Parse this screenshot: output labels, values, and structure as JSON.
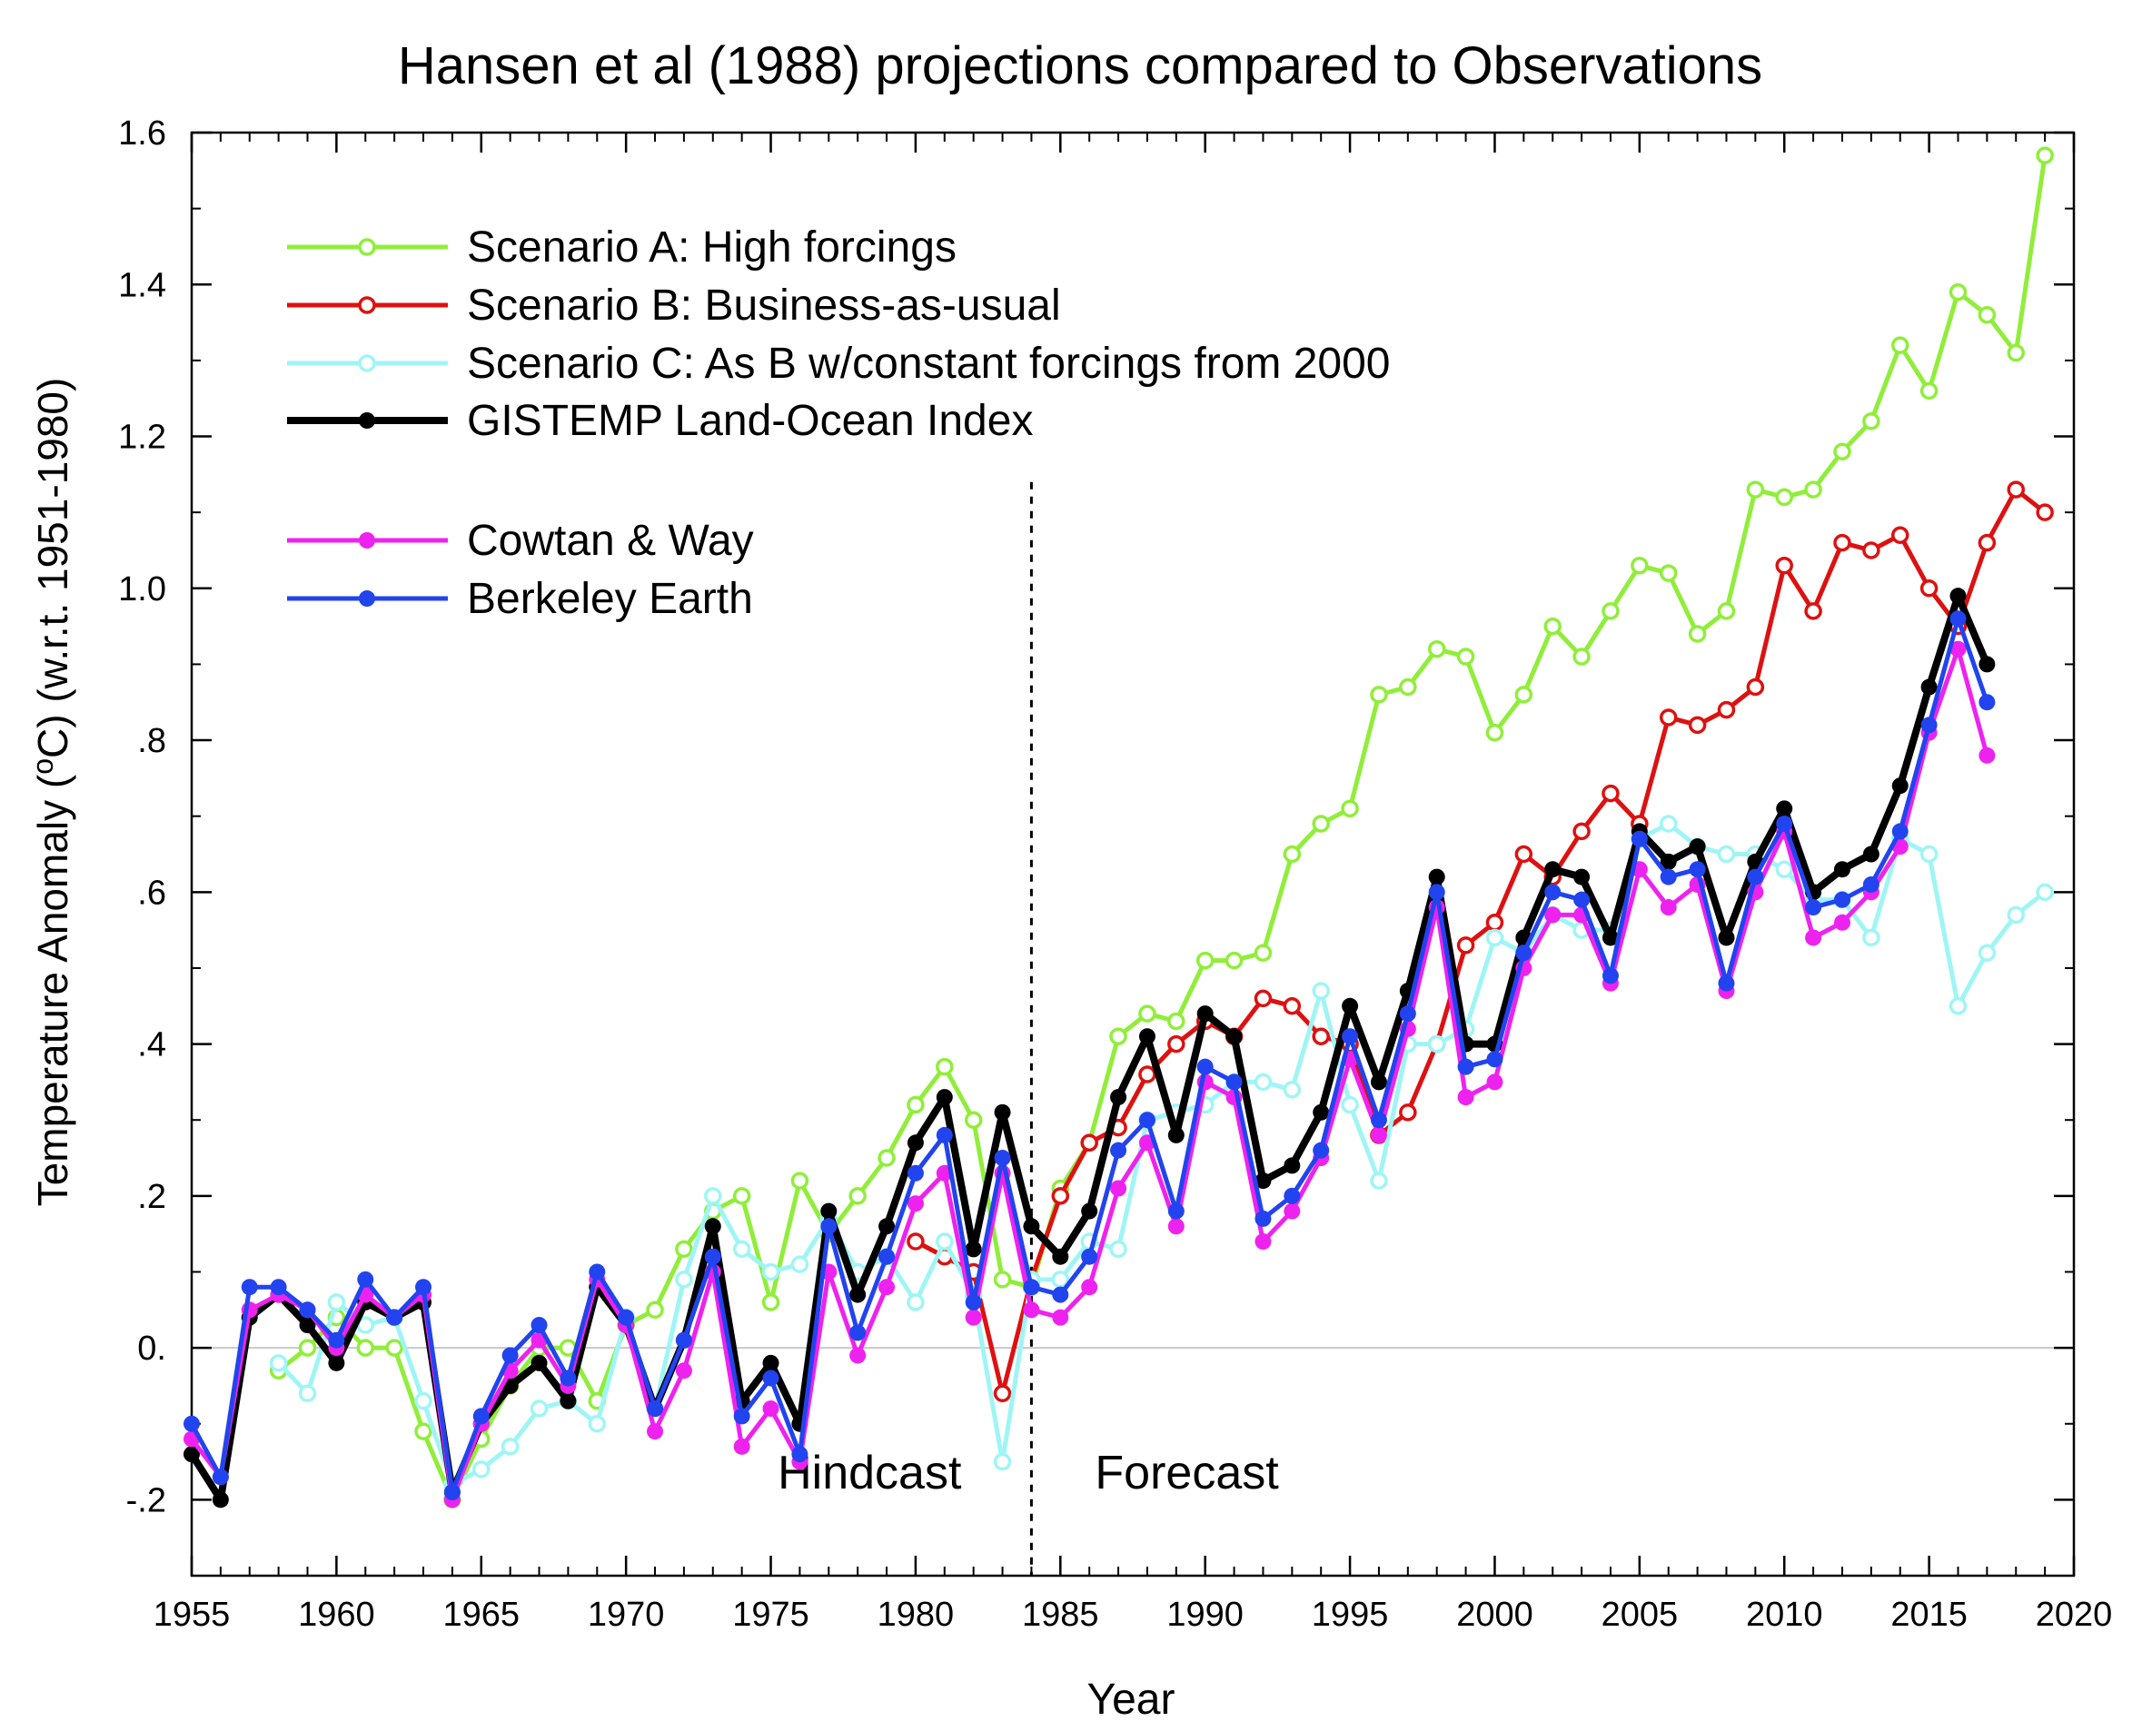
{
  "chart_data": {
    "type": "line",
    "title": "Hansen et al (1988) projections compared to Observations",
    "xlabel": "Year",
    "ylabel": "Temperature Anomaly (oC) (w.r.t. 1951-1980)",
    "ylabel_parts": {
      "before": "Temperature Anomaly (",
      "sup": "o",
      "after": "C) (w.r.t. 1951-1980)"
    },
    "xlim": [
      1955,
      2020
    ],
    "ylim": [
      -0.3,
      1.6
    ],
    "x_ticks": [
      1955,
      1960,
      1965,
      1970,
      1975,
      1980,
      1985,
      1990,
      1995,
      2000,
      2005,
      2010,
      2015,
      2020
    ],
    "x_tick_labels": [
      "1955",
      "1960",
      "1965",
      "1970",
      "1975",
      "1980",
      "1985",
      "1990",
      "1995",
      "2000",
      "2005",
      "2010",
      "2015",
      "2020"
    ],
    "y_ticks": [
      -0.2,
      0.0,
      0.2,
      0.4,
      0.6,
      0.8,
      1.0,
      1.2,
      1.4,
      1.6
    ],
    "y_tick_labels": [
      "-.2",
      "0.",
      ".2",
      ".4",
      ".6",
      ".8",
      "1.0",
      "1.2",
      "1.4",
      "1.6"
    ],
    "zero_line": true,
    "grid": false,
    "legend_position": "top-left",
    "annotations": {
      "divider_year": 1984,
      "hindcast_label": "Hindcast",
      "forecast_label": "Forecast"
    },
    "series": [
      {
        "name": "Scenario A: High forcings",
        "color": "#90ee3a",
        "marker": "open-circle",
        "x": [
          1958,
          1959,
          1960,
          1961,
          1962,
          1963,
          1964,
          1965,
          1966,
          1967,
          1968,
          1969,
          1970,
          1971,
          1972,
          1973,
          1974,
          1975,
          1976,
          1977,
          1978,
          1979,
          1980,
          1981,
          1982,
          1983,
          1984,
          1985,
          1986,
          1987,
          1988,
          1989,
          1990,
          1991,
          1992,
          1993,
          1994,
          1995,
          1996,
          1997,
          1998,
          1999,
          2000,
          2001,
          2002,
          2003,
          2004,
          2005,
          2006,
          2007,
          2008,
          2009,
          2010,
          2011,
          2012,
          2013,
          2014,
          2015,
          2016,
          2017,
          2018,
          2019
        ],
        "y": [
          -0.03,
          0.0,
          0.04,
          0.0,
          0.0,
          -0.11,
          -0.2,
          -0.12,
          -0.05,
          0.0,
          0.0,
          -0.07,
          0.03,
          0.05,
          0.13,
          0.18,
          0.2,
          0.06,
          0.22,
          0.15,
          0.2,
          0.25,
          0.32,
          0.37,
          0.3,
          0.09,
          0.08,
          0.21,
          0.27,
          0.41,
          0.44,
          0.43,
          0.51,
          0.51,
          0.52,
          0.65,
          0.69,
          0.71,
          0.86,
          0.87,
          0.92,
          0.91,
          0.81,
          0.86,
          0.95,
          0.91,
          0.97,
          1.03,
          1.02,
          0.94,
          0.97,
          1.13,
          1.12,
          1.13,
          1.18,
          1.22,
          1.32,
          1.26,
          1.39,
          1.36,
          1.31,
          1.57
        ]
      },
      {
        "name": "Scenario B: Business-as-usual",
        "color": "#dd1111",
        "marker": "open-circle",
        "x": [
          1980,
          1981,
          1982,
          1983,
          1984,
          1985,
          1986,
          1987,
          1988,
          1989,
          1990,
          1991,
          1992,
          1993,
          1994,
          1995,
          1996,
          1997,
          1998,
          1999,
          2000,
          2001,
          2002,
          2003,
          2004,
          2005,
          2006,
          2007,
          2008,
          2009,
          2010,
          2011,
          2012,
          2013,
          2014,
          2015,
          2016,
          2017,
          2018,
          2019
        ],
        "y": [
          0.14,
          0.12,
          0.1,
          -0.06,
          0.09,
          0.2,
          0.27,
          0.29,
          0.36,
          0.4,
          0.43,
          0.41,
          0.46,
          0.45,
          0.41,
          0.4,
          0.28,
          0.31,
          0.4,
          0.53,
          0.56,
          0.65,
          0.62,
          0.68,
          0.73,
          0.69,
          0.83,
          0.82,
          0.84,
          0.87,
          1.03,
          0.97,
          1.06,
          1.05,
          1.07,
          1.0,
          0.95,
          1.06,
          1.13,
          1.1
        ]
      },
      {
        "name": "Scenario C: As B w/constant forcings from 2000",
        "color": "#9ff5f5",
        "marker": "open-circle",
        "x": [
          1958,
          1959,
          1960,
          1961,
          1962,
          1963,
          1964,
          1965,
          1966,
          1967,
          1968,
          1969,
          1970,
          1971,
          1972,
          1973,
          1974,
          1975,
          1976,
          1977,
          1978,
          1979,
          1980,
          1981,
          1982,
          1983,
          1984,
          1985,
          1986,
          1987,
          1988,
          1989,
          1990,
          1991,
          1992,
          1993,
          1994,
          1995,
          1996,
          1997,
          1998,
          1999,
          2000,
          2001,
          2002,
          2003,
          2004,
          2005,
          2006,
          2007,
          2008,
          2009,
          2010,
          2011,
          2012,
          2013,
          2014,
          2015,
          2016,
          2017,
          2018,
          2019
        ],
        "y": [
          -0.02,
          -0.06,
          0.06,
          0.03,
          0.04,
          -0.07,
          -0.18,
          -0.16,
          -0.13,
          -0.08,
          -0.07,
          -0.1,
          0.04,
          -0.08,
          0.09,
          0.2,
          0.13,
          0.1,
          0.11,
          0.17,
          0.1,
          0.12,
          0.06,
          0.14,
          0.07,
          -0.15,
          0.09,
          0.09,
          0.14,
          0.13,
          0.3,
          0.31,
          0.32,
          0.35,
          0.35,
          0.34,
          0.47,
          0.32,
          0.22,
          0.4,
          0.4,
          0.42,
          0.54,
          0.52,
          0.57,
          0.55,
          0.55,
          0.67,
          0.69,
          0.66,
          0.65,
          0.65,
          0.63,
          0.59,
          0.59,
          0.54,
          0.67,
          0.65,
          0.45,
          0.52,
          0.57,
          0.6
        ]
      },
      {
        "name": "GISTEMP Land-Ocean Index",
        "color": "#000000",
        "marker": "filled-circle",
        "x": [
          1955,
          1956,
          1957,
          1958,
          1959,
          1960,
          1961,
          1962,
          1963,
          1964,
          1965,
          1966,
          1967,
          1968,
          1969,
          1970,
          1971,
          1972,
          1973,
          1974,
          1975,
          1976,
          1977,
          1978,
          1979,
          1980,
          1981,
          1982,
          1983,
          1984,
          1985,
          1986,
          1987,
          1988,
          1989,
          1990,
          1991,
          1992,
          1993,
          1994,
          1995,
          1996,
          1997,
          1998,
          1999,
          2000,
          2001,
          2002,
          2003,
          2004,
          2005,
          2006,
          2007,
          2008,
          2009,
          2010,
          2011,
          2012,
          2013,
          2014,
          2015,
          2016,
          2017
        ],
        "y": [
          -0.14,
          -0.2,
          0.04,
          0.07,
          0.03,
          -0.02,
          0.06,
          0.04,
          0.06,
          -0.19,
          -0.1,
          -0.05,
          -0.02,
          -0.07,
          0.08,
          0.03,
          -0.08,
          0.01,
          0.16,
          -0.07,
          -0.02,
          -0.1,
          0.18,
          0.07,
          0.16,
          0.27,
          0.33,
          0.13,
          0.31,
          0.16,
          0.12,
          0.18,
          0.33,
          0.41,
          0.28,
          0.44,
          0.41,
          0.22,
          0.24,
          0.31,
          0.45,
          0.35,
          0.47,
          0.62,
          0.4,
          0.4,
          0.54,
          0.63,
          0.62,
          0.54,
          0.68,
          0.64,
          0.66,
          0.54,
          0.64,
          0.71,
          0.6,
          0.63,
          0.65,
          0.74,
          0.87,
          0.99,
          0.9
        ]
      },
      {
        "name": "Cowtan & Way",
        "color": "#ee22ee",
        "marker": "filled-circle",
        "x": [
          1955,
          1956,
          1957,
          1958,
          1959,
          1960,
          1961,
          1962,
          1963,
          1964,
          1965,
          1966,
          1967,
          1968,
          1969,
          1970,
          1971,
          1972,
          1973,
          1974,
          1975,
          1976,
          1977,
          1978,
          1979,
          1980,
          1981,
          1982,
          1983,
          1984,
          1985,
          1986,
          1987,
          1988,
          1989,
          1990,
          1991,
          1992,
          1993,
          1994,
          1995,
          1996,
          1997,
          1998,
          1999,
          2000,
          2001,
          2002,
          2003,
          2004,
          2005,
          2006,
          2007,
          2008,
          2009,
          2010,
          2011,
          2012,
          2013,
          2014,
          2015,
          2016,
          2017
        ],
        "y": [
          -0.12,
          -0.17,
          0.05,
          0.07,
          0.05,
          0.0,
          0.07,
          0.04,
          0.07,
          -0.2,
          -0.1,
          -0.03,
          0.01,
          -0.05,
          0.09,
          0.03,
          -0.11,
          -0.03,
          0.1,
          -0.13,
          -0.08,
          -0.15,
          0.1,
          -0.01,
          0.08,
          0.19,
          0.23,
          0.04,
          0.23,
          0.05,
          0.04,
          0.08,
          0.21,
          0.27,
          0.16,
          0.35,
          0.33,
          0.14,
          0.18,
          0.25,
          0.38,
          0.28,
          0.42,
          0.58,
          0.33,
          0.35,
          0.5,
          0.57,
          0.57,
          0.48,
          0.63,
          0.58,
          0.61,
          0.47,
          0.6,
          0.68,
          0.54,
          0.56,
          0.6,
          0.66,
          0.81,
          0.92,
          0.78
        ]
      },
      {
        "name": "Berkeley Earth",
        "color": "#2244ee",
        "marker": "filled-circle",
        "x": [
          1955,
          1956,
          1957,
          1958,
          1959,
          1960,
          1961,
          1962,
          1963,
          1964,
          1965,
          1966,
          1967,
          1968,
          1969,
          1970,
          1971,
          1972,
          1973,
          1974,
          1975,
          1976,
          1977,
          1978,
          1979,
          1980,
          1981,
          1982,
          1983,
          1984,
          1985,
          1986,
          1987,
          1988,
          1989,
          1990,
          1991,
          1992,
          1993,
          1994,
          1995,
          1996,
          1997,
          1998,
          1999,
          2000,
          2001,
          2002,
          2003,
          2004,
          2005,
          2006,
          2007,
          2008,
          2009,
          2010,
          2011,
          2012,
          2013,
          2014,
          2015,
          2016,
          2017
        ],
        "y": [
          -0.1,
          -0.17,
          0.08,
          0.08,
          0.05,
          0.01,
          0.09,
          0.04,
          0.08,
          -0.19,
          -0.09,
          -0.01,
          0.03,
          -0.04,
          0.1,
          0.04,
          -0.08,
          0.01,
          0.12,
          -0.09,
          -0.04,
          -0.14,
          0.16,
          0.02,
          0.12,
          0.23,
          0.28,
          0.06,
          0.25,
          0.08,
          0.07,
          0.12,
          0.26,
          0.3,
          0.18,
          0.37,
          0.35,
          0.17,
          0.2,
          0.26,
          0.41,
          0.3,
          0.44,
          0.6,
          0.37,
          0.38,
          0.52,
          0.6,
          0.59,
          0.49,
          0.67,
          0.62,
          0.63,
          0.48,
          0.62,
          0.69,
          0.58,
          0.59,
          0.61,
          0.68,
          0.82,
          0.96,
          0.85
        ]
      }
    ]
  }
}
